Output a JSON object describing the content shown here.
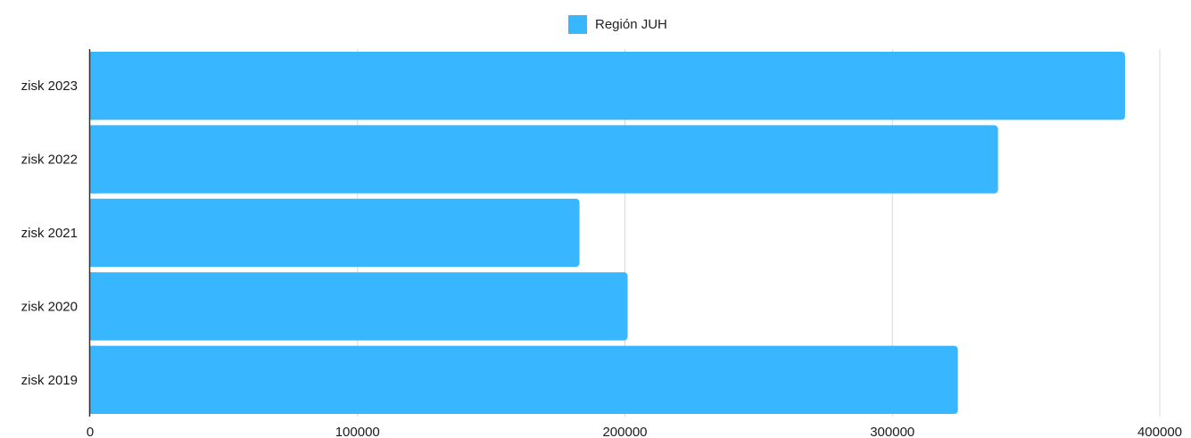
{
  "chart_data": {
    "type": "bar",
    "orientation": "horizontal",
    "title": "",
    "xlabel": "",
    "ylabel": "",
    "categories": [
      "zisk 2023",
      "zisk 2022",
      "zisk 2021",
      "zisk 2020",
      "zisk 2019"
    ],
    "series": [
      {
        "name": "Región JUH",
        "values": [
          387000,
          339500,
          183000,
          201000,
          324500
        ]
      }
    ],
    "xlim": [
      0,
      400000
    ],
    "x_ticks": [
      "0",
      "100000",
      "200000",
      "300000",
      "400000"
    ],
    "grid": true,
    "legend_position": "top-center",
    "colors": {
      "bar": "#38b6ff",
      "grid": "#d9d9d9",
      "axis": "#333333",
      "text": "#1a1a1a"
    }
  }
}
